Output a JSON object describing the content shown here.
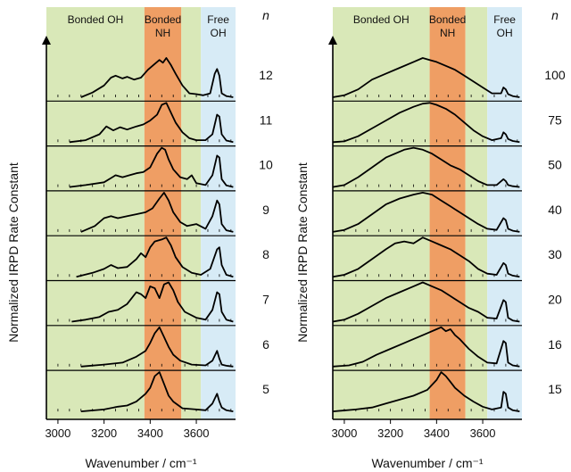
{
  "colors": {
    "bonded_oh": "#d9e8b8",
    "bonded_nh": "#ef9e64",
    "free_oh": "#d7ebf6",
    "trace": "#000000",
    "axis": "#000000"
  },
  "chart_data": [
    {
      "type": "line",
      "panel": "left",
      "ylabel": "Normalized IRPD Rate Constant",
      "xlabel": "Wavenumber / cm⁻¹",
      "xlim": [
        2950,
        3770
      ],
      "xticks": [
        3000,
        3200,
        3400,
        3600
      ],
      "ylim": [
        0,
        1
      ],
      "grid": false,
      "n_header": "n",
      "regions": [
        {
          "label": [
            "Bonded  OH"
          ],
          "from": 2950,
          "to": 3375,
          "color_key": "bonded_oh"
        },
        {
          "label": [
            "Bonded",
            "NH"
          ],
          "from": 3375,
          "to": 3535,
          "color_key": "bonded_nh"
        },
        {
          "label": [
            "",
            ""
          ],
          "from": 3535,
          "to": 3620,
          "color_key": "bonded_oh"
        },
        {
          "label": [
            "Free",
            "OH"
          ],
          "from": 3620,
          "to": 3770,
          "color_key": "free_oh"
        }
      ],
      "series": [
        {
          "n": "12",
          "x": [
            3100,
            3150,
            3200,
            3230,
            3250,
            3280,
            3300,
            3330,
            3360,
            3390,
            3420,
            3440,
            3455,
            3470,
            3490,
            3510,
            3540,
            3570,
            3600,
            3630,
            3660,
            3680,
            3690,
            3700,
            3710,
            3730,
            3760
          ],
          "y": [
            0,
            0.12,
            0.3,
            0.5,
            0.55,
            0.48,
            0.52,
            0.45,
            0.5,
            0.7,
            0.85,
            0.95,
            0.88,
            1.0,
            0.82,
            0.6,
            0.3,
            0.1,
            0.08,
            0.05,
            0.1,
            0.6,
            0.72,
            0.55,
            0.1,
            0.03,
            0
          ]
        },
        {
          "n": "11",
          "x": [
            3050,
            3120,
            3180,
            3210,
            3240,
            3270,
            3300,
            3340,
            3370,
            3400,
            3430,
            3450,
            3470,
            3490,
            3510,
            3540,
            3570,
            3600,
            3640,
            3670,
            3690,
            3700,
            3710,
            3730,
            3760
          ],
          "y": [
            0,
            0.05,
            0.2,
            0.4,
            0.3,
            0.38,
            0.32,
            0.4,
            0.45,
            0.55,
            0.7,
            0.95,
            1.0,
            0.75,
            0.5,
            0.25,
            0.1,
            0.05,
            0.05,
            0.2,
            0.7,
            0.65,
            0.2,
            0.04,
            0
          ]
        },
        {
          "n": "10",
          "x": [
            3050,
            3120,
            3200,
            3250,
            3280,
            3310,
            3340,
            3370,
            3400,
            3430,
            3450,
            3465,
            3480,
            3500,
            3530,
            3560,
            3580,
            3600,
            3640,
            3670,
            3690,
            3700,
            3710,
            3730,
            3760
          ],
          "y": [
            0,
            0.05,
            0.12,
            0.3,
            0.25,
            0.3,
            0.35,
            0.38,
            0.5,
            0.85,
            1.0,
            0.95,
            0.7,
            0.45,
            0.25,
            0.2,
            0.3,
            0.1,
            0.05,
            0.3,
            0.8,
            0.75,
            0.2,
            0.04,
            0
          ]
        },
        {
          "n": "9",
          "x": [
            3100,
            3160,
            3200,
            3230,
            3260,
            3300,
            3340,
            3380,
            3410,
            3440,
            3460,
            3480,
            3500,
            3530,
            3560,
            3600,
            3640,
            3670,
            3690,
            3700,
            3710,
            3730,
            3760
          ],
          "y": [
            0,
            0.15,
            0.35,
            0.4,
            0.35,
            0.4,
            0.45,
            0.5,
            0.6,
            0.85,
            1.0,
            0.8,
            0.5,
            0.25,
            0.15,
            0.2,
            0.08,
            0.4,
            0.8,
            0.7,
            0.2,
            0.04,
            0
          ]
        },
        {
          "n": "8",
          "x": [
            3080,
            3150,
            3200,
            3230,
            3260,
            3300,
            3340,
            3360,
            3380,
            3400,
            3420,
            3450,
            3470,
            3490,
            3510,
            3540,
            3580,
            3620,
            3660,
            3690,
            3700,
            3710,
            3730,
            3760
          ],
          "y": [
            0,
            0.1,
            0.2,
            0.3,
            0.22,
            0.25,
            0.45,
            0.6,
            0.5,
            0.75,
            0.9,
            0.95,
            1.0,
            0.8,
            0.5,
            0.25,
            0.1,
            0.05,
            0.2,
            0.7,
            0.75,
            0.3,
            0.05,
            0
          ]
        },
        {
          "n": "7",
          "x": [
            3060,
            3120,
            3180,
            3220,
            3260,
            3300,
            3320,
            3340,
            3360,
            3380,
            3400,
            3420,
            3440,
            3460,
            3480,
            3500,
            3520,
            3550,
            3600,
            3640,
            3670,
            3690,
            3700,
            3710,
            3730,
            3760
          ],
          "y": [
            0,
            0.05,
            0.12,
            0.25,
            0.3,
            0.45,
            0.6,
            0.75,
            0.7,
            0.6,
            0.9,
            0.85,
            0.6,
            0.95,
            1.0,
            0.8,
            0.5,
            0.25,
            0.1,
            0.05,
            0.3,
            0.75,
            0.7,
            0.25,
            0.05,
            0
          ]
        },
        {
          "n": "6",
          "x": [
            3100,
            3200,
            3280,
            3340,
            3380,
            3400,
            3420,
            3440,
            3460,
            3480,
            3500,
            3530,
            3580,
            3640,
            3670,
            3690,
            3700,
            3710,
            3730,
            3760
          ],
          "y": [
            0,
            0.05,
            0.1,
            0.25,
            0.4,
            0.6,
            0.85,
            1.0,
            0.75,
            0.5,
            0.3,
            0.15,
            0.05,
            0.03,
            0.15,
            0.4,
            0.2,
            0.05,
            0.02,
            0
          ]
        },
        {
          "n": "5",
          "x": [
            3100,
            3200,
            3260,
            3300,
            3340,
            3380,
            3400,
            3420,
            3440,
            3460,
            3480,
            3500,
            3540,
            3600,
            3640,
            3670,
            3690,
            3700,
            3710,
            3730,
            3760
          ],
          "y": [
            0,
            0.05,
            0.12,
            0.15,
            0.25,
            0.45,
            0.6,
            0.9,
            1.0,
            0.7,
            0.4,
            0.25,
            0.08,
            0.05,
            0.03,
            0.2,
            0.45,
            0.25,
            0.1,
            0.03,
            0
          ]
        }
      ]
    },
    {
      "type": "line",
      "panel": "right",
      "ylabel": "Normalized IRPD Rate Constant",
      "xlabel": "Wavenumber / cm⁻¹",
      "xlim": [
        2950,
        3770
      ],
      "xticks": [
        3000,
        3200,
        3400,
        3600
      ],
      "ylim": [
        0,
        1
      ],
      "grid": false,
      "n_header": "n",
      "regions": [
        {
          "label": [
            "Bonded  OH"
          ],
          "from": 2950,
          "to": 3370,
          "color_key": "bonded_oh"
        },
        {
          "label": [
            "Bonded",
            "NH"
          ],
          "from": 3370,
          "to": 3525,
          "color_key": "bonded_nh"
        },
        {
          "label": [
            "",
            ""
          ],
          "from": 3525,
          "to": 3620,
          "color_key": "bonded_oh"
        },
        {
          "label": [
            "Free",
            "OH"
          ],
          "from": 3620,
          "to": 3770,
          "color_key": "free_oh"
        }
      ],
      "series": [
        {
          "n": "100",
          "x": [
            2950,
            3000,
            3060,
            3120,
            3180,
            3240,
            3300,
            3340,
            3370,
            3400,
            3440,
            3480,
            3520,
            3560,
            3600,
            3640,
            3680,
            3690,
            3700,
            3710,
            3730,
            3760
          ],
          "y": [
            0,
            0.05,
            0.2,
            0.45,
            0.6,
            0.75,
            0.9,
            1.0,
            0.95,
            0.9,
            0.8,
            0.7,
            0.55,
            0.4,
            0.25,
            0.1,
            0.1,
            0.25,
            0.2,
            0.08,
            0.03,
            0
          ]
        },
        {
          "n": "75",
          "x": [
            2950,
            3000,
            3060,
            3120,
            3180,
            3240,
            3300,
            3340,
            3370,
            3400,
            3440,
            3480,
            3520,
            3560,
            3600,
            3640,
            3680,
            3690,
            3700,
            3710,
            3730,
            3760
          ],
          "y": [
            0,
            0.02,
            0.15,
            0.35,
            0.55,
            0.75,
            0.9,
            0.98,
            1.0,
            0.95,
            0.85,
            0.7,
            0.5,
            0.3,
            0.15,
            0.05,
            0.1,
            0.25,
            0.2,
            0.08,
            0.03,
            0
          ]
        },
        {
          "n": "50",
          "x": [
            2950,
            3000,
            3060,
            3120,
            3180,
            3220,
            3260,
            3300,
            3340,
            3380,
            3420,
            3460,
            3500,
            3540,
            3580,
            3620,
            3660,
            3690,
            3700,
            3710,
            3730,
            3760
          ],
          "y": [
            0,
            0.05,
            0.25,
            0.5,
            0.75,
            0.85,
            0.95,
            1.0,
            0.95,
            0.85,
            0.7,
            0.55,
            0.45,
            0.3,
            0.15,
            0.05,
            0.05,
            0.2,
            0.15,
            0.05,
            0.02,
            0
          ]
        },
        {
          "n": "40",
          "x": [
            2950,
            3000,
            3060,
            3120,
            3180,
            3240,
            3300,
            3340,
            3380,
            3420,
            3460,
            3500,
            3540,
            3580,
            3620,
            3660,
            3690,
            3700,
            3710,
            3730,
            3760
          ],
          "y": [
            0,
            0.05,
            0.2,
            0.45,
            0.7,
            0.85,
            0.95,
            1.0,
            0.95,
            0.8,
            0.65,
            0.5,
            0.35,
            0.2,
            0.08,
            0.05,
            0.35,
            0.3,
            0.08,
            0.03,
            0
          ]
        },
        {
          "n": "30",
          "x": [
            2950,
            3000,
            3060,
            3120,
            3180,
            3220,
            3260,
            3300,
            3340,
            3380,
            3420,
            3460,
            3500,
            3540,
            3580,
            3620,
            3660,
            3690,
            3700,
            3710,
            3730,
            3760
          ],
          "y": [
            0,
            0.05,
            0.2,
            0.45,
            0.7,
            0.85,
            0.9,
            0.85,
            1.0,
            0.9,
            0.8,
            0.7,
            0.55,
            0.4,
            0.2,
            0.08,
            0.05,
            0.35,
            0.3,
            0.08,
            0.03,
            0
          ]
        },
        {
          "n": "20",
          "x": [
            2950,
            3000,
            3060,
            3120,
            3180,
            3240,
            3300,
            3340,
            3380,
            3420,
            3460,
            3500,
            3540,
            3580,
            3620,
            3660,
            3690,
            3700,
            3710,
            3730,
            3760
          ],
          "y": [
            0,
            0.05,
            0.2,
            0.4,
            0.6,
            0.75,
            0.9,
            1.0,
            0.9,
            0.8,
            0.65,
            0.5,
            0.35,
            0.25,
            0.1,
            0.08,
            0.55,
            0.5,
            0.1,
            0.03,
            0
          ]
        },
        {
          "n": "16",
          "x": [
            2950,
            3020,
            3080,
            3140,
            3200,
            3260,
            3320,
            3360,
            3400,
            3420,
            3440,
            3460,
            3480,
            3500,
            3540,
            3580,
            3620,
            3660,
            3690,
            3700,
            3710,
            3730,
            3760
          ],
          "y": [
            0,
            0.03,
            0.12,
            0.3,
            0.45,
            0.6,
            0.75,
            0.85,
            0.95,
            1.0,
            0.9,
            0.95,
            0.8,
            0.7,
            0.45,
            0.25,
            0.1,
            0.08,
            0.65,
            0.6,
            0.1,
            0.03,
            0
          ]
        },
        {
          "n": "15",
          "x": [
            2950,
            3050,
            3120,
            3180,
            3240,
            3300,
            3360,
            3400,
            3420,
            3440,
            3460,
            3480,
            3520,
            3560,
            3600,
            3640,
            3680,
            3690,
            3700,
            3710,
            3730,
            3760
          ],
          "y": [
            0,
            0.05,
            0.1,
            0.2,
            0.3,
            0.4,
            0.55,
            0.8,
            1.0,
            0.9,
            0.75,
            0.6,
            0.4,
            0.25,
            0.12,
            0.05,
            0.1,
            0.5,
            0.45,
            0.1,
            0.03,
            0
          ]
        }
      ]
    }
  ]
}
